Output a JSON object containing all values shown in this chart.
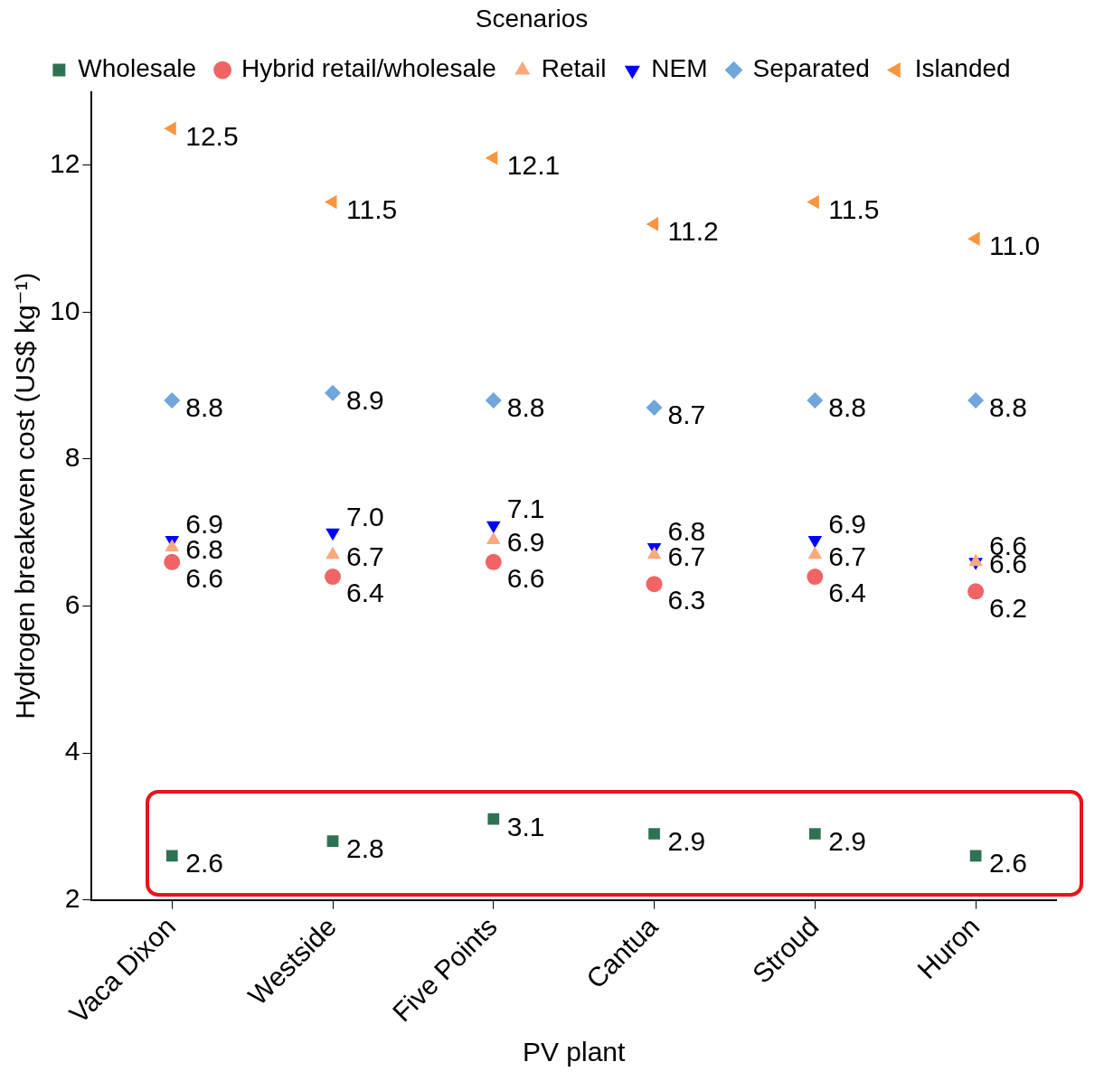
{
  "chart_data": {
    "type": "scatter",
    "xlabel": "PV plant",
    "ylabel": "Hydrogen breakeven cost (US$ kg⁻¹)",
    "legend_title": "Scenarios",
    "legend": "top",
    "categories": [
      "Vaca Dixon",
      "Westside",
      "Five Points",
      "Cantua",
      "Stroud",
      "Huron"
    ],
    "ylim": [
      2,
      13
    ],
    "yticks": [
      2,
      4,
      6,
      8,
      10,
      12
    ],
    "grid": false,
    "series": [
      {
        "name": "Wholesale",
        "color": "#2e7254",
        "marker": "square",
        "values": [
          2.6,
          2.8,
          3.1,
          2.9,
          2.9,
          2.6
        ],
        "value_labels": [
          "2.6",
          "2.8",
          "3.1",
          "2.9",
          "2.9",
          "2.6"
        ]
      },
      {
        "name": "Hybrid retail/wholesale",
        "color": "#f06464",
        "marker": "circle",
        "values": [
          6.6,
          6.4,
          6.6,
          6.3,
          6.4,
          6.2
        ],
        "value_labels": [
          "6.6",
          "6.4",
          "6.6",
          "6.3",
          "6.4",
          "6.2"
        ]
      },
      {
        "name": "Retail",
        "color": "#f9a97b",
        "marker": "triangle",
        "values": [
          6.8,
          6.7,
          6.9,
          6.7,
          6.7,
          6.6
        ],
        "value_labels": [
          "6.8",
          "6.7",
          "6.9",
          "6.7",
          "6.7",
          "6.6"
        ]
      },
      {
        "name": "NEM",
        "color": "#0000ff",
        "marker": "triangle-down",
        "values": [
          6.9,
          7.0,
          7.1,
          6.8,
          6.9,
          6.6
        ],
        "value_labels": [
          "6.9",
          "7.0",
          "7.1",
          "6.8",
          "6.9",
          "6.6"
        ]
      },
      {
        "name": "Separated",
        "color": "#6fa6dc",
        "marker": "diamond",
        "values": [
          8.8,
          8.9,
          8.8,
          8.7,
          8.8,
          8.8
        ],
        "value_labels": [
          "8.8",
          "8.9",
          "8.8",
          "8.7",
          "8.8",
          "8.8"
        ]
      },
      {
        "name": "Islanded",
        "color": "#f7963f",
        "marker": "triangle-left",
        "values": [
          12.5,
          11.5,
          12.1,
          11.2,
          11.5,
          11.0
        ],
        "value_labels": [
          "12.5",
          "11.5",
          "12.1",
          "11.2",
          "11.5",
          "11.0"
        ]
      }
    ]
  }
}
